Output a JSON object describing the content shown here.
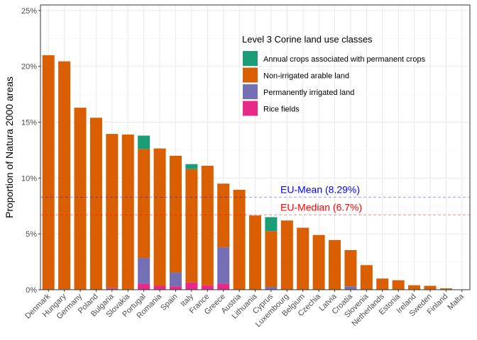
{
  "chart_data": {
    "type": "bar",
    "stacked": true,
    "ylabel": "Proportion of Natura 2000 areas",
    "xlabel": "",
    "ylim": [
      0,
      25.5
    ],
    "yticks": [
      0,
      5,
      10,
      15,
      20,
      25
    ],
    "ytick_labels": [
      "0%",
      "5%",
      "10%",
      "15%",
      "20%",
      "25%"
    ],
    "grid": true,
    "legend": {
      "title": "Level 3 Corine land use classes",
      "placement": "top-right"
    },
    "categories": [
      "Denmark",
      "Hungary",
      "Germany",
      "Poland",
      "Bulgaria",
      "Slovakia",
      "Portugal",
      "Romania",
      "Spain",
      "Italy",
      "France",
      "Greece",
      "Austria",
      "Lithuania",
      "Cyprus",
      "Luxembourg",
      "Belgium",
      "Czechia",
      "Latvia",
      "Croatia",
      "Slovenia",
      "Netherlands",
      "Estonia",
      "Ireland",
      "Sweden",
      "Finland",
      "Malta"
    ],
    "series": [
      {
        "name": "Rice fields",
        "color": "#E7298A",
        "values": [
          0,
          0,
          0,
          0,
          0.1,
          0,
          0.55,
          0.35,
          0.3,
          0.65,
          0.4,
          0.55,
          0,
          0,
          0,
          0,
          0,
          0,
          0,
          0,
          0,
          0,
          0,
          0,
          0,
          0,
          0
        ]
      },
      {
        "name": "Permanently irrigated land",
        "color": "#7570B3",
        "values": [
          0,
          0.05,
          0,
          0,
          0.05,
          0,
          2.3,
          0,
          1.25,
          0,
          0,
          3.25,
          0,
          0,
          0.25,
          0,
          0,
          0,
          0,
          0.3,
          0,
          0,
          0,
          0,
          0,
          0,
          0
        ]
      },
      {
        "name": "Non-irrigated arable land",
        "color": "#D95F02",
        "values": [
          21.0,
          20.4,
          16.3,
          15.4,
          13.8,
          13.9,
          9.75,
          12.3,
          10.45,
          10.15,
          10.7,
          5.7,
          8.95,
          6.65,
          5.0,
          6.2,
          5.55,
          4.9,
          4.45,
          3.25,
          2.2,
          1.0,
          0.85,
          0.4,
          0.35,
          0.12,
          0.02
        ]
      },
      {
        "name": "Annual crops associated with permanent crops",
        "color": "#1B9E77",
        "values": [
          0,
          0,
          0,
          0,
          0,
          0,
          1.2,
          0,
          0,
          0.45,
          0,
          0,
          0,
          0,
          1.25,
          0,
          0,
          0,
          0,
          0,
          0,
          0,
          0,
          0,
          0,
          0,
          0
        ]
      }
    ],
    "legend_order": [
      "Annual crops associated with permanent crops",
      "Non-irrigated arable land",
      "Permanently irrigated land",
      "Rice fields"
    ],
    "reference_lines": [
      {
        "label": "EU-Mean (8.29%)",
        "value": 8.29,
        "color": "#0000FF"
      },
      {
        "label": "EU-Median (6.7%)",
        "value": 6.7,
        "color": "#FF0000"
      }
    ]
  }
}
